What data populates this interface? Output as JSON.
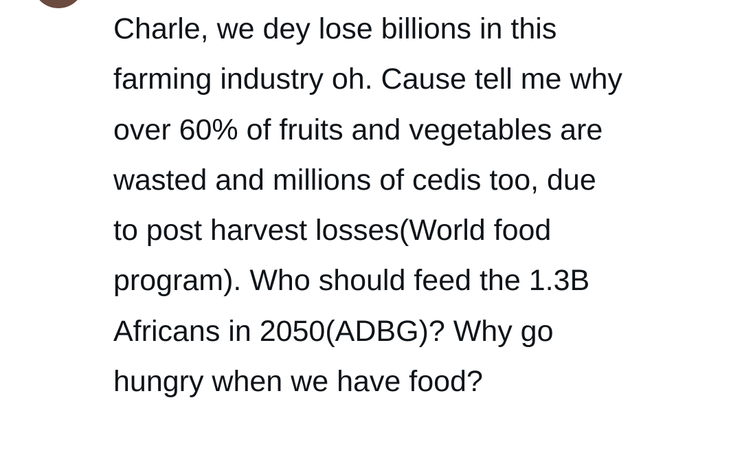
{
  "tweet": {
    "lines": [
      "Charle, we dey lose billions in this",
      "farming industry oh. Cause tell me why",
      "over 60% of fruits and vegetables are",
      "wasted and millions of cedis too, due",
      "to post harvest losses(World food",
      "program). Who should feed the 1.3B",
      "Africans in 2050(ADBG)? Why go",
      "hungry when we have food?"
    ]
  },
  "colors": {
    "text": "#0f1419",
    "background": "#ffffff",
    "avatar": "#6b4b3f"
  }
}
